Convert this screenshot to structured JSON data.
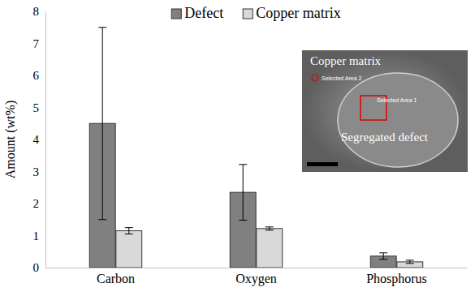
{
  "chart_data": {
    "type": "bar",
    "categories": [
      "Carbon",
      "Oxygen",
      "Phosphorus"
    ],
    "series": [
      {
        "name": "Defect",
        "color": "#808080",
        "values": [
          4.5,
          2.35,
          0.36
        ],
        "errors": [
          3.0,
          0.87,
          0.1
        ]
      },
      {
        "name": "Copper matrix",
        "color": "#d9d9d9",
        "values": [
          1.15,
          1.22,
          0.18
        ],
        "errors": [
          0.1,
          0.05,
          0.05
        ]
      }
    ],
    "y_label": "Amount (wt%)",
    "ylim": [
      0,
      8
    ],
    "yticks": [
      0,
      1,
      2,
      3,
      4,
      5,
      6,
      7,
      8
    ],
    "grid": false,
    "legend": "top",
    "annotations": [
      "Copper matrix",
      "Segregated defect",
      "Selected Area 2",
      "Selected Area 1"
    ]
  }
}
